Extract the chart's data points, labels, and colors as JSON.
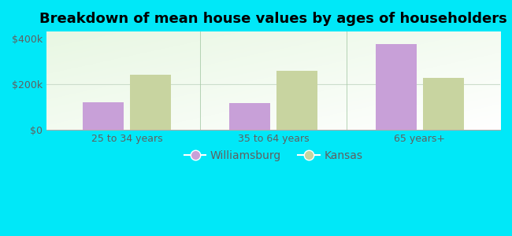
{
  "title": "Breakdown of mean house values by ages of householders",
  "categories": [
    "25 to 34 years",
    "35 to 64 years",
    "65 years+"
  ],
  "williamsburg": [
    120000,
    118000,
    375000
  ],
  "kansas": [
    242000,
    258000,
    228000
  ],
  "williamsburg_color": "#c8a0d8",
  "kansas_color": "#c8d4a0",
  "background_outer": "#00e8f8",
  "ylabel_ticks": [
    0,
    200000,
    400000
  ],
  "ylabel_labels": [
    "$0",
    "$200k",
    "$400k"
  ],
  "ylim": [
    0,
    430000
  ],
  "bar_width": 0.28,
  "legend_labels": [
    "Williamsburg",
    "Kansas"
  ],
  "title_fontsize": 13,
  "tick_fontsize": 9,
  "legend_fontsize": 10,
  "tick_color": "#606060"
}
